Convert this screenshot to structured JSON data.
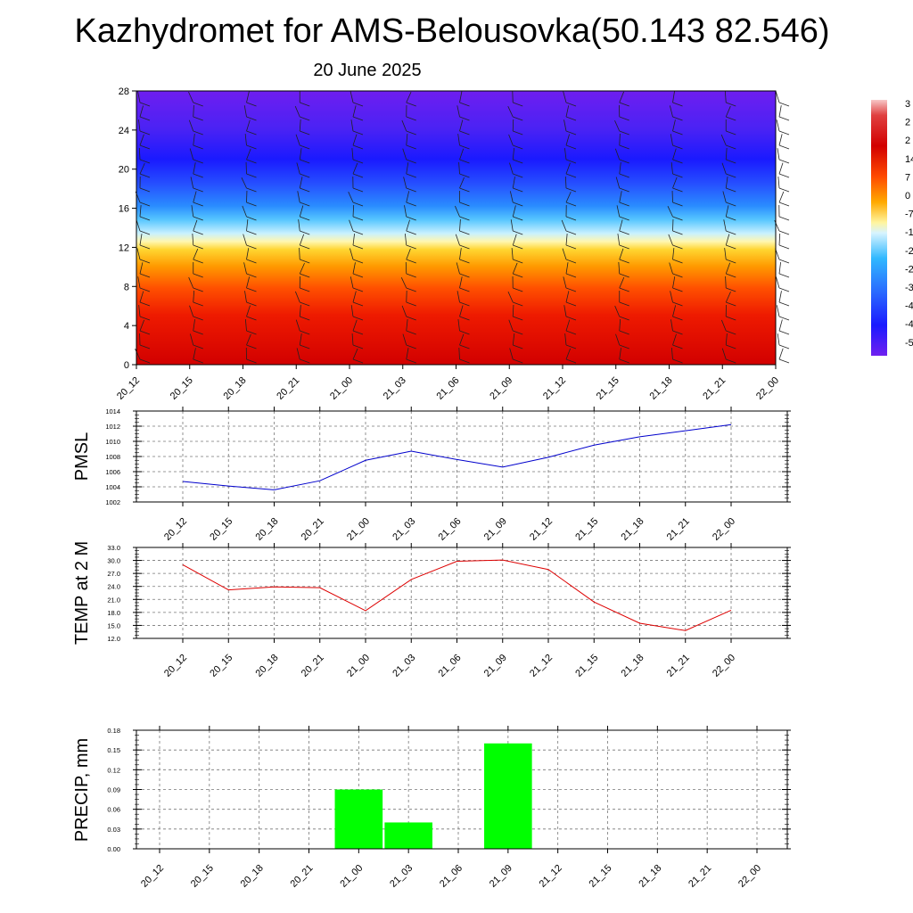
{
  "title": "Kazhydromet for AMS-Belousovka(50.143 82.546)",
  "subtitle": "20 June 2025",
  "colorbar_labels": [
    "3",
    "2",
    "2",
    "14",
    "7",
    "0",
    "-7",
    "-1",
    "-2",
    "-2",
    "-3",
    "-4",
    "-4",
    "-5"
  ],
  "chart_data": [
    {
      "type": "heatmap",
      "title": "",
      "x": [
        "20_12",
        "20_15",
        "20_18",
        "20_21",
        "21_00",
        "21_03",
        "21_06",
        "21_09",
        "21_12",
        "21_15",
        "21_18",
        "21_21",
        "22_00"
      ],
      "y_ticks": [
        0,
        4,
        8,
        12,
        16,
        20,
        24,
        28
      ],
      "ylim": [
        0,
        28
      ],
      "description_of_field": "temperature-colored vertical profile with wind barbs",
      "color_range": [
        "#d10000",
        "#ff4b00",
        "#ffa000",
        "#ffe680",
        "#a9e7ff",
        "#2aa3ff",
        "#2a2aff",
        "#6a1ef0"
      ],
      "grid": false
    },
    {
      "type": "line",
      "ylabel": "PMSL",
      "x": [
        "20_12",
        "20_15",
        "20_18",
        "20_21",
        "21_00",
        "21_03",
        "21_06",
        "21_09",
        "21_12",
        "21_15",
        "21_18",
        "21_21",
        "22_00"
      ],
      "values": [
        1004.7,
        1004.1,
        1003.6,
        1004.8,
        1007.5,
        1008.7,
        1007.6,
        1006.6,
        1007.9,
        1009.5,
        1010.6,
        1011.4,
        1012.2
      ],
      "yticks": [
        "1002",
        "1004",
        "1006",
        "1008",
        "1010",
        "1012",
        "1014"
      ],
      "ylim": [
        1002,
        1014
      ],
      "color": "#0000cc",
      "grid": true
    },
    {
      "type": "line",
      "ylabel": "TEMP at 2 M",
      "x": [
        "20_12",
        "20_15",
        "20_18",
        "20_21",
        "21_00",
        "21_03",
        "21_06",
        "21_09",
        "21_12",
        "21_15",
        "21_18",
        "21_21",
        "22_00"
      ],
      "values": [
        29.0,
        23.2,
        23.9,
        23.7,
        18.4,
        25.6,
        29.8,
        30.1,
        27.9,
        20.4,
        15.5,
        13.8,
        18.5
      ],
      "yticks": [
        "12.0",
        "15.0",
        "18.0",
        "21.0",
        "24.0",
        "27.0",
        "30.0",
        "33.0"
      ],
      "ylim": [
        12,
        33
      ],
      "color": "#dd0000",
      "grid": true
    },
    {
      "type": "bar",
      "ylabel": "PRECIP, mm",
      "categories": [
        "20_12",
        "20_15",
        "20_18",
        "20_21",
        "21_00",
        "21_03",
        "21_06",
        "21_09",
        "21_12",
        "21_15",
        "21_18",
        "21_21",
        "22_00"
      ],
      "values": [
        0,
        0,
        0,
        0,
        0.09,
        0.04,
        0,
        0.16,
        0,
        0,
        0,
        0,
        0
      ],
      "yticks": [
        "0.00",
        "0.03",
        "0.06",
        "0.09",
        "0.12",
        "0.15",
        "0.18"
      ],
      "ylim": [
        0,
        0.18
      ],
      "color": "#00ff00",
      "grid": true
    }
  ]
}
